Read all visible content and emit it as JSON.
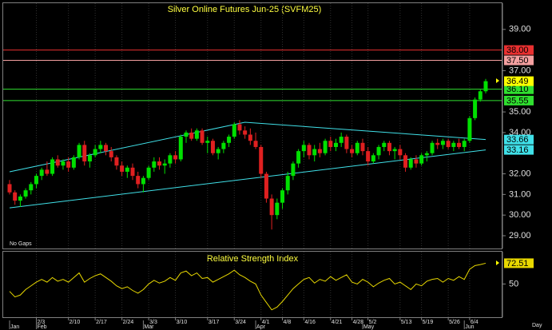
{
  "chart_data": [
    {
      "type": "candlestick",
      "title": "Silver Online Futures Jun-25 (SVFM25)",
      "note": "No Gaps",
      "up_color": "#00e000",
      "down_color": "#e02020",
      "ylim": [
        28.38,
        40.27
      ],
      "yticks": [
        {
          "value": 39,
          "label": "39.00"
        },
        {
          "value": 37,
          "label": "37.00"
        },
        {
          "value": 35,
          "label": "35.00"
        },
        {
          "value": 34,
          "label": "34.00"
        },
        {
          "value": 32,
          "label": "32.00"
        },
        {
          "value": 31,
          "label": "31.00"
        },
        {
          "value": 30,
          "label": "30.00"
        },
        {
          "value": 29,
          "label": "29.00"
        }
      ],
      "xticks": [
        {
          "value": 5,
          "label": "2/3"
        },
        {
          "value": 11,
          "label": "2/10"
        },
        {
          "value": 16,
          "label": "2/17"
        },
        {
          "value": 21,
          "label": "2/24"
        },
        {
          "value": 26,
          "label": "3/3"
        },
        {
          "value": 31,
          "label": "3/10"
        },
        {
          "value": 37,
          "label": "3/17"
        },
        {
          "value": 42,
          "label": "3/24"
        },
        {
          "value": 47,
          "label": "4/1"
        },
        {
          "value": 51,
          "label": "4/8"
        },
        {
          "value": 55,
          "label": "4/16"
        },
        {
          "value": 60,
          "label": "4/21"
        },
        {
          "value": 64,
          "label": "4/28"
        },
        {
          "value": 67,
          "label": "5/2"
        },
        {
          "value": 73,
          "label": "5/13"
        },
        {
          "value": 77,
          "label": "5/19"
        },
        {
          "value": 82,
          "label": "5/26"
        },
        {
          "value": 86,
          "label": "6/4"
        }
      ],
      "month_ticks": [
        {
          "value": 0,
          "label": "Jan"
        },
        {
          "value": 5,
          "label": "Feb"
        },
        {
          "value": 25,
          "label": "Mar"
        },
        {
          "value": 46,
          "label": "Apr"
        },
        {
          "value": 66,
          "label": "May"
        },
        {
          "value": 85,
          "label": "Jun"
        }
      ],
      "grid": true,
      "levels": [
        {
          "value": 38,
          "label": "38.00",
          "color": "#e83030"
        },
        {
          "value": 37.5,
          "label": "37.50",
          "color": "#f4a0a0"
        },
        {
          "value": 36.1,
          "label": "36.10",
          "color": "#30e030"
        },
        {
          "value": 35.55,
          "label": "35.55",
          "color": "#30e030"
        }
      ],
      "last_color": "#ffff00",
      "trendlines": [
        {
          "color": "#40e0e8",
          "points": [
            [
              0,
              32.1
            ],
            [
              44,
              34.5
            ],
            [
              89,
              33.66
            ]
          ]
        },
        {
          "color": "#40e0e8",
          "points": [
            [
              0,
              30.35
            ],
            [
              89,
              33.16
            ]
          ]
        }
      ],
      "candles": [
        [
          31.5,
          31.7,
          31.0,
          31.1
        ],
        [
          31.1,
          31.2,
          30.5,
          30.7
        ],
        [
          30.7,
          31.0,
          30.4,
          30.9
        ],
        [
          30.9,
          31.3,
          30.8,
          31.2
        ],
        [
          31.2,
          31.6,
          31.0,
          31.5
        ],
        [
          31.5,
          32.0,
          31.3,
          31.9
        ],
        [
          31.9,
          32.3,
          31.7,
          32.2
        ],
        [
          32.2,
          32.6,
          31.9,
          32.0
        ],
        [
          32.0,
          32.8,
          31.9,
          32.7
        ],
        [
          32.7,
          32.9,
          32.3,
          32.4
        ],
        [
          32.4,
          32.7,
          32.2,
          32.6
        ],
        [
          32.6,
          32.8,
          32.1,
          32.3
        ],
        [
          32.3,
          32.9,
          32.2,
          32.8
        ],
        [
          32.8,
          33.5,
          32.7,
          33.4
        ],
        [
          33.4,
          33.6,
          32.4,
          32.6
        ],
        [
          32.6,
          33.0,
          32.3,
          32.9
        ],
        [
          32.9,
          33.4,
          32.8,
          33.2
        ],
        [
          33.2,
          33.6,
          33.0,
          33.4
        ],
        [
          33.4,
          33.5,
          32.9,
          33.1
        ],
        [
          33.1,
          33.3,
          32.6,
          32.8
        ],
        [
          32.8,
          32.9,
          32.2,
          32.4
        ],
        [
          32.4,
          32.6,
          31.9,
          32.1
        ],
        [
          32.1,
          32.4,
          31.8,
          32.3
        ],
        [
          32.3,
          32.5,
          31.7,
          31.9
        ],
        [
          31.9,
          32.1,
          31.3,
          31.5
        ],
        [
          31.5,
          31.9,
          31.1,
          31.8
        ],
        [
          31.8,
          32.4,
          31.7,
          32.3
        ],
        [
          32.3,
          32.8,
          32.1,
          32.6
        ],
        [
          32.6,
          32.8,
          32.2,
          32.4
        ],
        [
          32.4,
          32.7,
          32.0,
          32.5
        ],
        [
          32.5,
          33.0,
          32.3,
          32.9
        ],
        [
          32.9,
          33.1,
          32.5,
          32.7
        ],
        [
          32.7,
          33.9,
          32.6,
          33.8
        ],
        [
          33.8,
          34.1,
          33.5,
          34.0
        ],
        [
          34.0,
          34.2,
          33.6,
          33.7
        ],
        [
          33.7,
          34.2,
          33.6,
          34.1
        ],
        [
          34.1,
          34.2,
          33.4,
          33.5
        ],
        [
          33.5,
          33.8,
          33.0,
          33.6
        ],
        [
          33.6,
          33.7,
          32.9,
          33.0
        ],
        [
          33.0,
          33.3,
          32.7,
          33.2
        ],
        [
          33.2,
          33.6,
          33.0,
          33.5
        ],
        [
          33.5,
          33.9,
          33.3,
          33.8
        ],
        [
          33.8,
          34.5,
          33.7,
          34.4
        ],
        [
          34.4,
          34.6,
          33.9,
          34.1
        ],
        [
          34.1,
          34.3,
          33.7,
          33.9
        ],
        [
          33.9,
          34.2,
          33.4,
          33.6
        ],
        [
          33.6,
          34.0,
          33.2,
          33.3
        ],
        [
          33.3,
          33.4,
          31.8,
          32.0
        ],
        [
          32.0,
          32.1,
          30.6,
          30.8
        ],
        [
          30.8,
          31.0,
          29.3,
          30.0
        ],
        [
          30.0,
          30.8,
          29.8,
          30.6
        ],
        [
          30.6,
          31.3,
          30.3,
          31.2
        ],
        [
          31.2,
          32.1,
          31.0,
          31.9
        ],
        [
          31.9,
          32.6,
          31.7,
          32.5
        ],
        [
          32.5,
          33.2,
          32.3,
          33.1
        ],
        [
          33.1,
          33.6,
          32.8,
          33.4
        ],
        [
          33.4,
          33.5,
          32.7,
          32.9
        ],
        [
          32.9,
          33.4,
          32.6,
          33.2
        ],
        [
          33.2,
          33.5,
          32.8,
          33.0
        ],
        [
          33.0,
          33.7,
          32.9,
          33.6
        ],
        [
          33.6,
          33.8,
          33.1,
          33.3
        ],
        [
          33.3,
          33.7,
          33.1,
          33.5
        ],
        [
          33.5,
          34.0,
          33.3,
          33.8
        ],
        [
          33.8,
          33.9,
          33.0,
          33.2
        ],
        [
          33.2,
          33.4,
          32.8,
          33.0
        ],
        [
          33.0,
          33.6,
          32.9,
          33.5
        ],
        [
          33.5,
          33.7,
          32.9,
          33.1
        ],
        [
          33.1,
          33.3,
          32.4,
          32.6
        ],
        [
          32.6,
          33.0,
          32.5,
          32.9
        ],
        [
          32.9,
          33.4,
          32.7,
          33.3
        ],
        [
          33.3,
          33.6,
          33.1,
          33.5
        ],
        [
          33.5,
          33.6,
          32.9,
          33.1
        ],
        [
          33.1,
          33.3,
          32.7,
          33.2
        ],
        [
          33.2,
          33.4,
          32.7,
          32.9
        ],
        [
          32.9,
          33.0,
          32.1,
          32.3
        ],
        [
          32.3,
          32.8,
          32.2,
          32.7
        ],
        [
          32.7,
          32.9,
          32.3,
          32.5
        ],
        [
          32.5,
          33.0,
          32.4,
          32.9
        ],
        [
          32.9,
          33.1,
          32.6,
          33.0
        ],
        [
          33.0,
          33.6,
          32.9,
          33.5
        ],
        [
          33.5,
          33.7,
          33.2,
          33.4
        ],
        [
          33.4,
          33.7,
          33.2,
          33.6
        ],
        [
          33.6,
          33.7,
          33.2,
          33.3
        ],
        [
          33.3,
          33.6,
          33.1,
          33.5
        ],
        [
          33.5,
          33.7,
          33.2,
          33.3
        ],
        [
          33.3,
          33.7,
          33.1,
          33.6
        ],
        [
          33.6,
          34.8,
          33.5,
          34.7
        ],
        [
          34.7,
          35.7,
          34.6,
          35.6
        ],
        [
          35.6,
          36.1,
          35.5,
          36.0
        ],
        [
          36.0,
          36.6,
          35.9,
          36.49
        ]
      ]
    },
    {
      "type": "line",
      "title": "Relative Strength Index",
      "xlabel": "Day",
      "color": "#e8d800",
      "ylim": [
        14,
        85
      ],
      "yticks": [
        50
      ],
      "values": [
        42,
        36,
        38,
        44,
        48,
        52,
        55,
        52,
        57,
        53,
        55,
        52,
        57,
        62,
        52,
        56,
        59,
        61,
        57,
        53,
        48,
        45,
        47,
        43,
        40,
        44,
        50,
        54,
        51,
        53,
        57,
        54,
        62,
        64,
        59,
        62,
        56,
        57,
        52,
        55,
        58,
        61,
        65,
        60,
        57,
        53,
        50,
        38,
        30,
        22,
        25,
        31,
        38,
        45,
        50,
        55,
        57,
        51,
        55,
        53,
        58,
        54,
        57,
        60,
        52,
        50,
        55,
        52,
        47,
        51,
        54,
        56,
        50,
        52,
        48,
        44,
        50,
        48,
        53,
        55,
        56,
        52,
        56,
        54,
        58,
        55,
        66,
        70,
        71,
        72.51
      ]
    }
  ]
}
